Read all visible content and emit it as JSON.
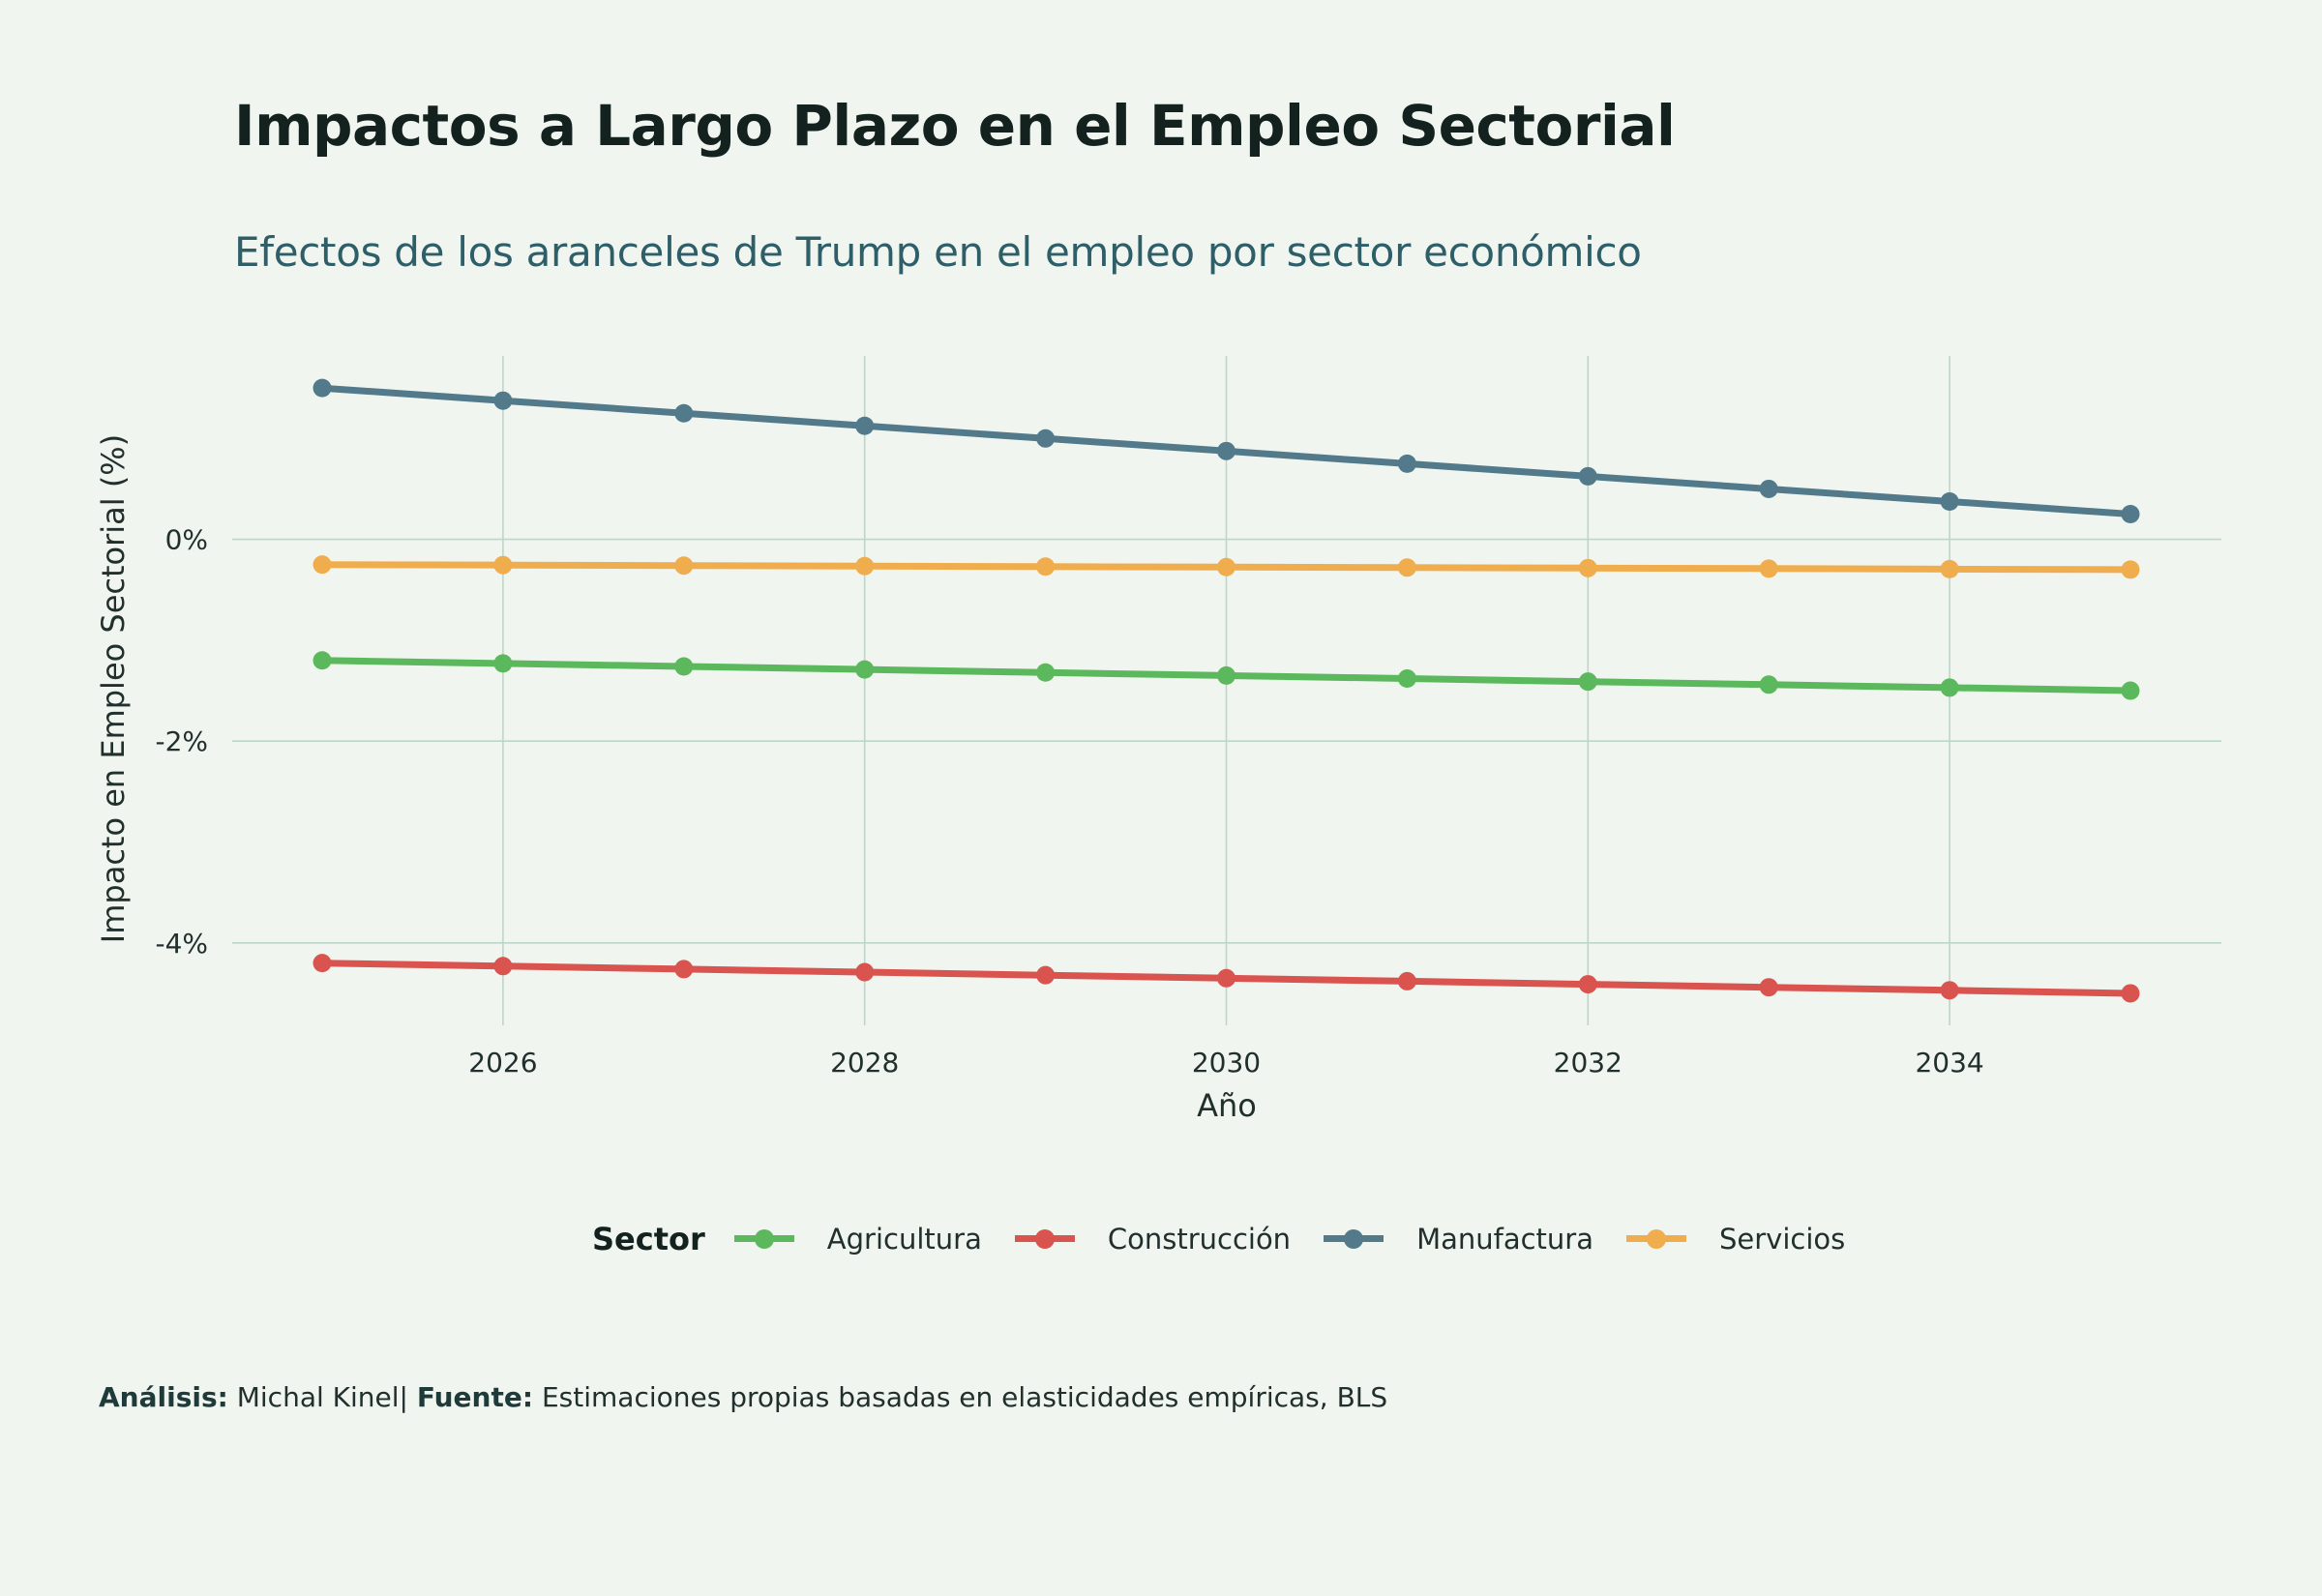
{
  "title": "Impactos a Largo Plazo en el Empleo Sectorial",
  "subtitle": "Efectos de los aranceles de Trump en el empleo por sector económico",
  "caption": {
    "analysis_label": "Análisis:",
    "analysis_value": "Michal Kinel",
    "separator": "|",
    "source_label": "Fuente:",
    "source_value": "Estimaciones propias basadas en elasticidades empíricas, BLS"
  },
  "legend": {
    "title": "Sector"
  },
  "colors": {
    "background": "#F0F5F0",
    "grid": "#BCD6C8"
  },
  "chart_data": {
    "type": "line",
    "title": "Impactos a Largo Plazo en el Empleo Sectorial",
    "subtitle": "Efectos de los aranceles de Trump en el empleo por sector económico",
    "xlabel": "Año",
    "ylabel": "Impacto en Empleo Sectorial (%)",
    "x": [
      2025,
      2026,
      2027,
      2028,
      2029,
      2030,
      2031,
      2032,
      2033,
      2034,
      2035
    ],
    "xticks": [
      2026,
      2028,
      2030,
      2032,
      2034
    ],
    "xtick_labels": [
      "2026",
      "2028",
      "2030",
      "2032",
      "2034"
    ],
    "yticks": [
      0,
      -2,
      -4
    ],
    "ytick_labels": [
      "0%",
      "-2%",
      "-4%"
    ],
    "xlim": [
      2024.5,
      2035.5
    ],
    "ylim": [
      -4.75,
      1.8
    ],
    "grid": true,
    "legend_position": "bottom",
    "series": [
      {
        "name": "Agricultura",
        "color": "#5CB85C",
        "values": [
          -1.2,
          -1.23,
          -1.26,
          -1.29,
          -1.32,
          -1.35,
          -1.38,
          -1.41,
          -1.44,
          -1.47,
          -1.5
        ]
      },
      {
        "name": "Construcción",
        "color": "#D9534F",
        "values": [
          -4.2,
          -4.23,
          -4.26,
          -4.29,
          -4.32,
          -4.35,
          -4.38,
          -4.41,
          -4.44,
          -4.47,
          -4.5
        ]
      },
      {
        "name": "Manufactura",
        "color": "#527A8A",
        "values": [
          1.5,
          1.375,
          1.25,
          1.125,
          1.0,
          0.875,
          0.75,
          0.625,
          0.5,
          0.375,
          0.25
        ]
      },
      {
        "name": "Servicios",
        "color": "#F0AD4E",
        "values": [
          -0.25,
          -0.255,
          -0.26,
          -0.265,
          -0.27,
          -0.275,
          -0.28,
          -0.285,
          -0.29,
          -0.295,
          -0.3
        ]
      }
    ]
  }
}
